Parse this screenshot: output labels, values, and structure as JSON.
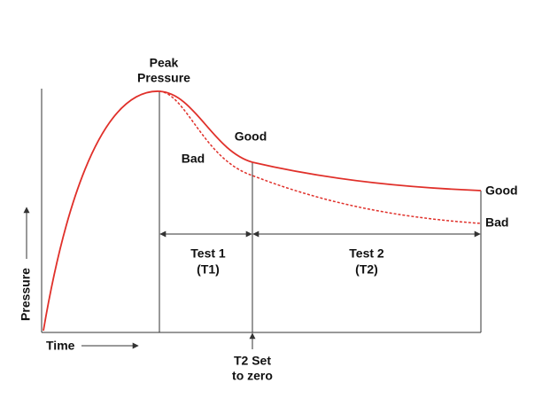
{
  "labels": {
    "peak": [
      "Peak",
      "Pressure"
    ],
    "good_curve": "Good",
    "bad_curve": "Bad",
    "good_end": "Good",
    "bad_end": "Bad",
    "test1": [
      "Test 1",
      "(T1)"
    ],
    "test2": [
      "Test 2",
      "(T2)"
    ],
    "y_axis": "Pressure",
    "x_axis": "Time",
    "t2": [
      "T2 Set",
      "to zero"
    ]
  }
}
